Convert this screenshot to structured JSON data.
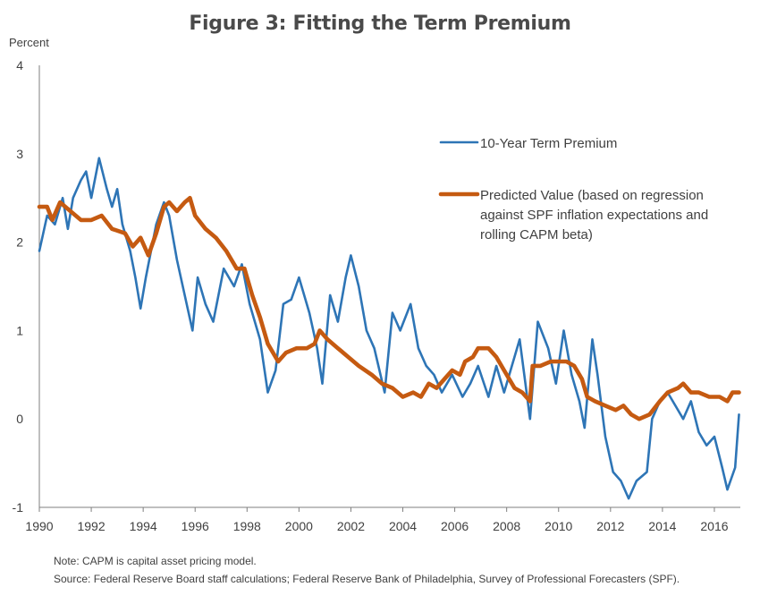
{
  "chart_data": {
    "type": "line",
    "title": "Figure 3:  Fitting the Term Premium",
    "ylabel": "Percent",
    "xlabel": "",
    "ylim": [
      -1,
      4
    ],
    "xlim": [
      1990,
      2017
    ],
    "yticks": [
      -1,
      0,
      1,
      2,
      3,
      4
    ],
    "xticks": [
      1990,
      1992,
      1994,
      1996,
      1998,
      2000,
      2002,
      2004,
      2006,
      2008,
      2010,
      2012,
      2014,
      2016
    ],
    "grid": false,
    "legend_position": "top-right",
    "series": [
      {
        "name": "10-Year Term Premium",
        "color": "#2E75B6",
        "x": [
          1990.0,
          1990.3,
          1990.6,
          1990.9,
          1991.1,
          1991.3,
          1991.6,
          1991.8,
          1992.0,
          1992.2,
          1992.3,
          1992.6,
          1992.8,
          1993.0,
          1993.2,
          1993.5,
          1993.7,
          1993.9,
          1994.1,
          1994.5,
          1994.8,
          1995.0,
          1995.3,
          1995.6,
          1995.9,
          1996.1,
          1996.4,
          1996.7,
          1997.1,
          1997.5,
          1997.8,
          1998.1,
          1998.5,
          1998.8,
          1999.1,
          1999.4,
          1999.7,
          2000.0,
          2000.4,
          2000.7,
          2000.9,
          2001.2,
          2001.5,
          2001.8,
          2002.0,
          2002.3,
          2002.6,
          2002.9,
          2003.3,
          2003.6,
          2003.9,
          2004.3,
          2004.6,
          2004.9,
          2005.2,
          2005.5,
          2005.9,
          2006.3,
          2006.6,
          2006.9,
          2007.3,
          2007.6,
          2007.9,
          2008.2,
          2008.5,
          2008.9,
          2009.2,
          2009.6,
          2009.9,
          2010.2,
          2010.5,
          2010.8,
          2011.0,
          2011.3,
          2011.5,
          2011.8,
          2012.1,
          2012.4,
          2012.7,
          2013.0,
          2013.4,
          2013.6,
          2013.9,
          2014.2,
          2014.5,
          2014.8,
          2015.1,
          2015.4,
          2015.7,
          2016.0,
          2016.3,
          2016.5,
          2016.8,
          2016.95
        ],
        "values": [
          1.9,
          2.3,
          2.2,
          2.5,
          2.15,
          2.5,
          2.7,
          2.8,
          2.5,
          2.8,
          2.95,
          2.6,
          2.4,
          2.6,
          2.2,
          1.9,
          1.6,
          1.25,
          1.6,
          2.2,
          2.45,
          2.3,
          1.8,
          1.4,
          1.0,
          1.6,
          1.3,
          1.1,
          1.7,
          1.5,
          1.75,
          1.3,
          0.9,
          0.3,
          0.55,
          1.3,
          1.35,
          1.6,
          1.2,
          0.8,
          0.4,
          1.4,
          1.1,
          1.6,
          1.85,
          1.5,
          1.0,
          0.8,
          0.3,
          1.2,
          1.0,
          1.3,
          0.8,
          0.6,
          0.5,
          0.3,
          0.5,
          0.25,
          0.4,
          0.6,
          0.25,
          0.6,
          0.3,
          0.6,
          0.9,
          0.0,
          1.1,
          0.8,
          0.4,
          1.0,
          0.5,
          0.2,
          -0.1,
          0.9,
          0.5,
          -0.2,
          -0.6,
          -0.7,
          -0.9,
          -0.7,
          -0.6,
          0.0,
          0.2,
          0.3,
          0.15,
          0.0,
          0.2,
          -0.15,
          -0.3,
          -0.2,
          -0.55,
          -0.8,
          -0.55,
          0.05
        ]
      },
      {
        "name": "Predicted Value (based on regression against SPF inflation expectations and rolling CAPM beta)",
        "color": "#C55A11",
        "x": [
          1990.0,
          1990.3,
          1990.5,
          1990.8,
          1991.2,
          1991.6,
          1992.0,
          1992.4,
          1992.8,
          1993.3,
          1993.6,
          1993.9,
          1994.2,
          1994.5,
          1994.8,
          1995.0,
          1995.3,
          1995.6,
          1995.8,
          1996.0,
          1996.4,
          1996.8,
          1997.2,
          1997.6,
          1997.9,
          1998.2,
          1998.5,
          1998.8,
          1999.2,
          1999.5,
          1999.9,
          2000.3,
          2000.6,
          2000.8,
          2001.1,
          2001.5,
          2001.9,
          2002.3,
          2002.8,
          2003.2,
          2003.6,
          2004.0,
          2004.4,
          2004.7,
          2005.0,
          2005.3,
          2005.6,
          2005.9,
          2006.2,
          2006.4,
          2006.7,
          2006.9,
          2007.3,
          2007.6,
          2007.9,
          2008.3,
          2008.6,
          2008.9,
          2009.0,
          2009.3,
          2009.7,
          2010.0,
          2010.3,
          2010.6,
          2010.9,
          2011.1,
          2011.4,
          2011.8,
          2012.2,
          2012.5,
          2012.8,
          2013.1,
          2013.5,
          2013.9,
          2014.2,
          2014.6,
          2014.8,
          2015.1,
          2015.4,
          2015.8,
          2016.2,
          2016.5,
          2016.7,
          2016.95
        ],
        "values": [
          2.4,
          2.4,
          2.25,
          2.45,
          2.35,
          2.25,
          2.25,
          2.3,
          2.15,
          2.1,
          1.95,
          2.05,
          1.85,
          2.1,
          2.4,
          2.45,
          2.35,
          2.45,
          2.5,
          2.3,
          2.15,
          2.05,
          1.9,
          1.7,
          1.7,
          1.4,
          1.15,
          0.85,
          0.65,
          0.75,
          0.8,
          0.8,
          0.85,
          1.0,
          0.9,
          0.8,
          0.7,
          0.6,
          0.5,
          0.4,
          0.35,
          0.25,
          0.3,
          0.25,
          0.4,
          0.35,
          0.45,
          0.55,
          0.5,
          0.65,
          0.7,
          0.8,
          0.8,
          0.7,
          0.55,
          0.35,
          0.3,
          0.2,
          0.6,
          0.6,
          0.65,
          0.65,
          0.65,
          0.6,
          0.45,
          0.25,
          0.2,
          0.15,
          0.1,
          0.15,
          0.05,
          0.0,
          0.05,
          0.2,
          0.3,
          0.35,
          0.4,
          0.3,
          0.3,
          0.25,
          0.25,
          0.2,
          0.3,
          0.3
        ]
      }
    ],
    "legend": [
      {
        "lines": [
          "10-Year Term Premium"
        ]
      },
      {
        "lines": [
          "Predicted Value (based on regression",
          "against SPF inflation expectations and",
          "rolling CAPM beta)"
        ]
      }
    ]
  },
  "footer": {
    "note": "Note:  CAPM is capital asset pricing model.",
    "source": "Source:  Federal Reserve Board staff calculations; Federal Reserve Bank of Philadelphia, Survey of Professional Forecasters (SPF)."
  }
}
